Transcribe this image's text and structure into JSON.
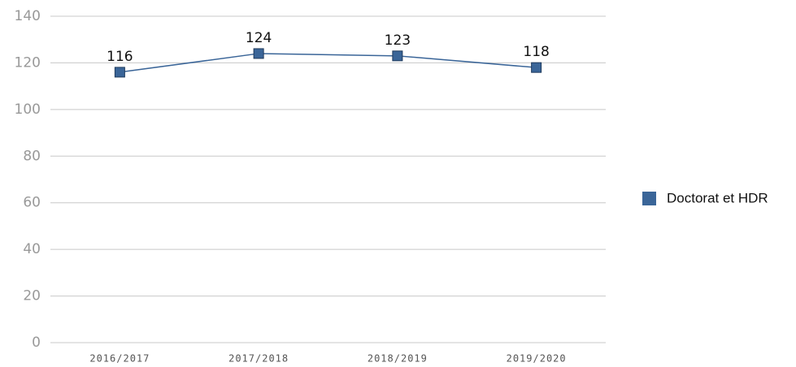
{
  "chart_data": {
    "type": "line",
    "categories": [
      "2016/2017",
      "2017/2018",
      "2018/2019",
      "2019/2020"
    ],
    "series": [
      {
        "name": "Doctorat et HDR",
        "color": "#3a6598",
        "values": [
          116,
          124,
          123,
          118
        ]
      }
    ],
    "ylim": [
      0,
      140
    ],
    "yticks": [
      0,
      20,
      40,
      60,
      80,
      100,
      120,
      140
    ],
    "grid": true,
    "legend": "right"
  }
}
